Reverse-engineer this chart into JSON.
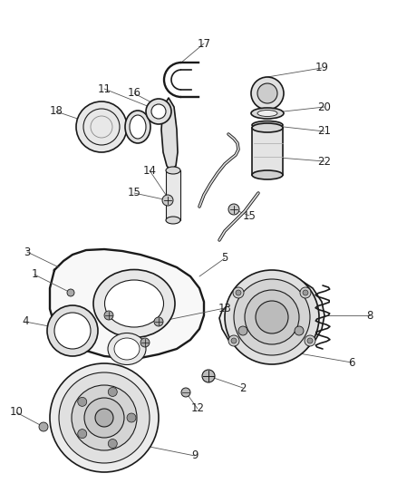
{
  "bg_color": "#ffffff",
  "line_color": "#1a1a1a",
  "label_color": "#222222",
  "fig_width": 4.38,
  "fig_height": 5.33,
  "dpi": 100
}
